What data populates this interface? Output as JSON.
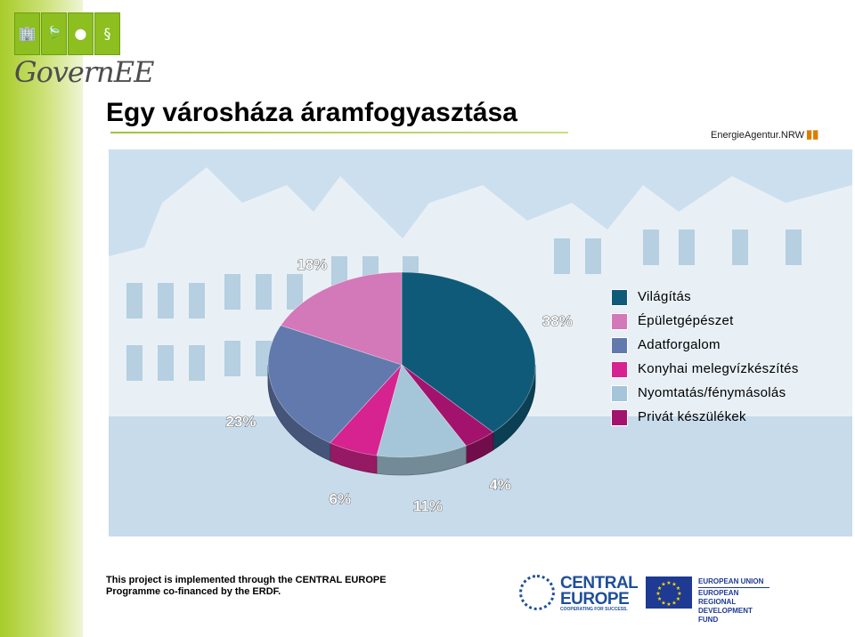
{
  "logo": {
    "text": "GovernEE",
    "tiles": [
      "🏢",
      "🍃",
      "●",
      "§"
    ]
  },
  "title": "Egy városháza áramfogyasztása",
  "partner_logo": {
    "text": "EnergieAgentur.NRW"
  },
  "chart_data": {
    "type": "pie",
    "title": "Egy városháza áramfogyasztása",
    "unit": "%",
    "legend_position": "right",
    "slices": [
      {
        "label": "Világítás",
        "value": 38,
        "value_label": "38%",
        "color": "#0f5a78"
      },
      {
        "label": "Privát készülékek",
        "value": 4,
        "value_label": "4%",
        "color": "#a3136d"
      },
      {
        "label": "Nyomtatás/fénymásolás",
        "value": 11,
        "value_label": "11%",
        "color": "#a5c6d8"
      },
      {
        "label": "Konyhai melegvízkészítés",
        "value": 6,
        "value_label": "6%",
        "color": "#d6238f"
      },
      {
        "label": "Adatforgalom",
        "value": 23,
        "value_label": "23%",
        "color": "#6279ad"
      },
      {
        "label": "Épületgépészet",
        "value": 18,
        "value_label": "18%",
        "color": "#d378b8"
      }
    ],
    "legend": [
      {
        "label": "Világítás",
        "color": "#0f5a78"
      },
      {
        "label": "Épületgépészet",
        "color": "#d378b8"
      },
      {
        "label": "Adatforgalom",
        "color": "#6279ad"
      },
      {
        "label": "Konyhai melegvízkészítés",
        "color": "#d6238f"
      },
      {
        "label": "Nyomtatás/fénymásolás",
        "color": "#a5c6d8"
      },
      {
        "label": "Privát készülékek",
        "color": "#a3136d"
      }
    ]
  },
  "footer": {
    "line1": "This project is implemented through the CENTRAL EUROPE",
    "line2": "Programme co-financed by the ERDF."
  },
  "central_europe_logo": {
    "line1": "CENTRAL",
    "line2": "EUROPE",
    "tagline": "COOPERATING FOR SUCCESS."
  },
  "eu_logo": {
    "line1": "EUROPEAN UNION",
    "line2": "EUROPEAN REGIONAL",
    "line3": "DEVELOPMENT FUND"
  }
}
